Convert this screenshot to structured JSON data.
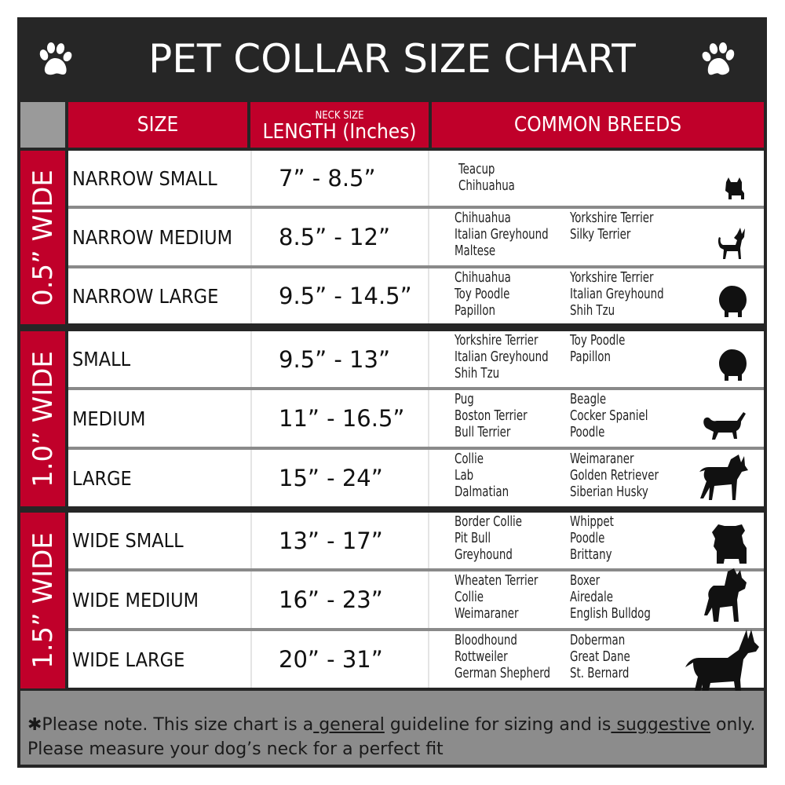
{
  "title": "PET COLLAR SIZE CHART",
  "header": {
    "size": "SIZE",
    "length_small": "NECK SIZE",
    "length": "LENGTH (Inches)",
    "breeds": "COMMON BREEDS"
  },
  "groups": [
    {
      "label": "0.5” WIDE",
      "rows": [
        {
          "size": "NARROW SMALL",
          "length": "7” - 8.5”",
          "col1": [
            "Teacup",
            "Chihuahua"
          ],
          "col2": [],
          "icon": "yorkie-silhouette-icon"
        },
        {
          "size": "NARROW MEDIUM",
          "length": "8.5” - 12”",
          "col1": [
            "Chihuahua",
            "Italian Greyhound",
            "Maltese"
          ],
          "col2": [
            "Yorkshire Terrier",
            "Silky Terrier"
          ],
          "icon": "chihuahua-silhouette-icon"
        },
        {
          "size": "NARROW LARGE",
          "length": "9.5” - 14.5”",
          "col1": [
            "Chihuahua",
            "Toy Poodle",
            "Papillon"
          ],
          "col2": [
            "Yorkshire Terrier",
            "Italian Greyhound",
            "Shih Tzu"
          ],
          "icon": "pomeranian-silhouette-icon"
        }
      ]
    },
    {
      "label": "1.0” WIDE",
      "rows": [
        {
          "size": "SMALL",
          "length": "9.5” - 13”",
          "col1": [
            "Yorkshire Terrier",
            "Italian Greyhound",
            "Shih Tzu"
          ],
          "col2": [
            "Toy Poodle",
            "Papillon"
          ],
          "icon": "pomeranian-silhouette-icon"
        },
        {
          "size": "MEDIUM",
          "length": "11” - 16.5”",
          "col1": [
            "Pug",
            "Boston Terrier",
            "Bull Terrier"
          ],
          "col2": [
            "Beagle",
            "Cocker Spaniel",
            "Poodle"
          ],
          "icon": "dachshund-silhouette-icon"
        },
        {
          "size": "LARGE",
          "length": "15” - 24”",
          "col1": [
            "Collie",
            "Lab",
            "Dalmatian"
          ],
          "col2": [
            "Weimaraner",
            "Golden Retriever",
            "Siberian Husky"
          ],
          "icon": "shepherd-silhouette-icon"
        }
      ]
    },
    {
      "label": "1.5” WIDE",
      "rows": [
        {
          "size": "WIDE SMALL",
          "length": "13” - 17”",
          "col1": [
            "Border Collie",
            "Pit Bull",
            "Greyhound"
          ],
          "col2": [
            "Whippet",
            "Poodle",
            "Brittany"
          ],
          "icon": "bulldog-silhouette-icon"
        },
        {
          "size": "WIDE MEDIUM",
          "length": "16” - 23”",
          "col1": [
            "Wheaten Terrier",
            "Collie",
            "Weimaraner"
          ],
          "col2": [
            "Boxer",
            "Airedale",
            "English Bulldog"
          ],
          "icon": "pitbull-silhouette-icon"
        },
        {
          "size": "WIDE LARGE",
          "length": "20” - 31”",
          "col1": [
            "Bloodhound",
            "Rottweiler",
            "German Shepherd"
          ],
          "col2": [
            "Doberman",
            "Great Dane",
            "St. Bernard"
          ],
          "icon": "doberman-silhouette-icon"
        }
      ]
    }
  ],
  "footer": {
    "p1": "✱Please note. This size chart is a",
    "u1": " general",
    "p2": " guideline for sizing and is",
    "u2": " suggestive",
    "p3": " only.",
    "line2": "Please measure your dog’s neck for a perfect fit"
  },
  "colors": {
    "red": "#c0002a",
    "dark": "#262626",
    "gray": "#8c8c8c"
  }
}
